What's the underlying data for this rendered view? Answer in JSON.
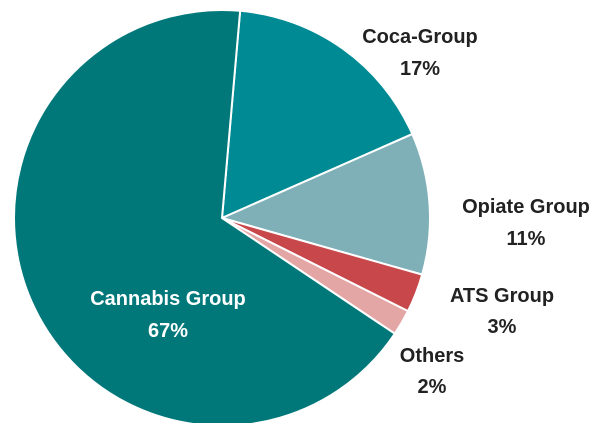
{
  "chart_data": {
    "type": "pie",
    "slices": [
      {
        "label": "Coca-Group",
        "value_label": "17%",
        "value": 17,
        "color": "#008b94"
      },
      {
        "label": "Opiate Group",
        "value_label": "11%",
        "value": 11,
        "color": "#7fb0b8"
      },
      {
        "label": "ATS Group",
        "value_label": "3%",
        "value": 3,
        "color": "#c8474a"
      },
      {
        "label": "Others",
        "value_label": "2%",
        "value": 2,
        "color": "#e3a6a4"
      },
      {
        "label": "Cannabis Group",
        "value_label": "67%",
        "value": 67,
        "color": "#00787a"
      }
    ],
    "start_angle_deg": 85,
    "direction": "clockwise",
    "slice_border_color": "#ffffff"
  }
}
